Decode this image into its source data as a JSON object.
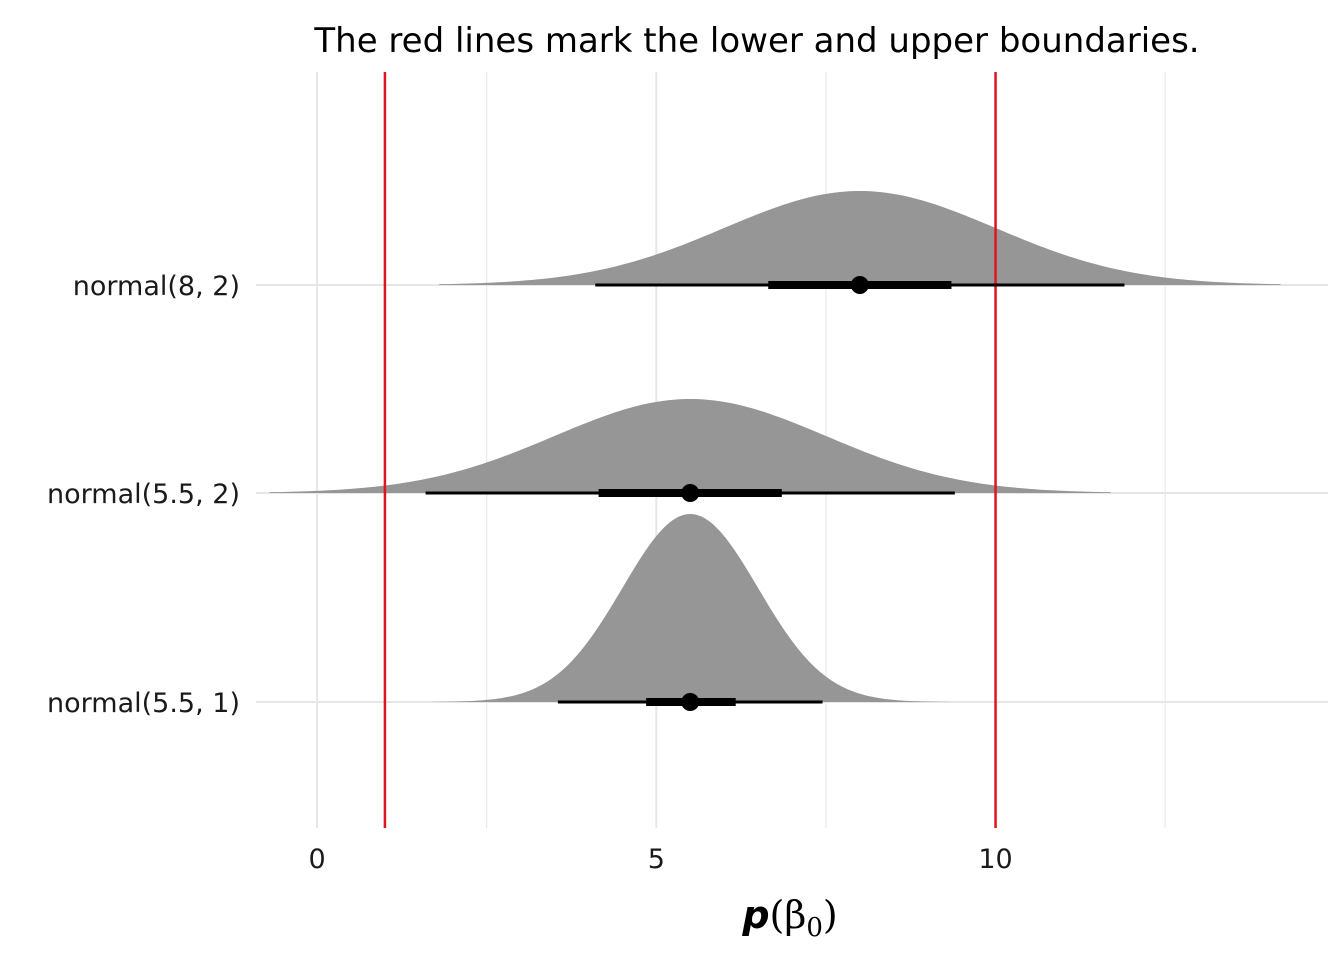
{
  "chart_data": {
    "type": "area",
    "title": "The red lines mark the lower and upper boundaries.",
    "xlabel": "p(β0)",
    "xlabel_parts": {
      "func": "p",
      "open": "(",
      "symbol": "β",
      "subscript": "0",
      "close": ")"
    },
    "xlim": [
      -0.9,
      14.9
    ],
    "x_ticks": [
      0,
      5,
      10
    ],
    "x_tick_labels": [
      "0",
      "5",
      "10"
    ],
    "x_minor_ticks": [
      2.5,
      7.5,
      12.5
    ],
    "grid": true,
    "legend": "none",
    "boundaries": [
      1,
      10
    ],
    "colors": {
      "density_fill": "#969696",
      "interval": "#000000",
      "boundary": "#e0141e",
      "grid": "#e6e6e6"
    },
    "series": [
      {
        "name": "normal(5.5, 1)",
        "mean": 5.5,
        "sd": 1,
        "point": 5.5,
        "interval_66": [
          4.85,
          6.17
        ],
        "interval_95": [
          3.55,
          7.45
        ],
        "x_range": [
          1.7,
          9.3
        ]
      },
      {
        "name": "normal(5.5, 2)",
        "mean": 5.5,
        "sd": 2,
        "point": 5.5,
        "interval_66": [
          4.15,
          6.85
        ],
        "interval_95": [
          1.6,
          9.4
        ],
        "x_range": [
          -0.7,
          11.7
        ]
      },
      {
        "name": "normal(8, 2)",
        "mean": 8,
        "sd": 2,
        "point": 8,
        "interval_66": [
          6.65,
          9.35
        ],
        "interval_95": [
          4.1,
          11.9
        ],
        "x_range": [
          1.8,
          14.2
        ]
      }
    ]
  }
}
